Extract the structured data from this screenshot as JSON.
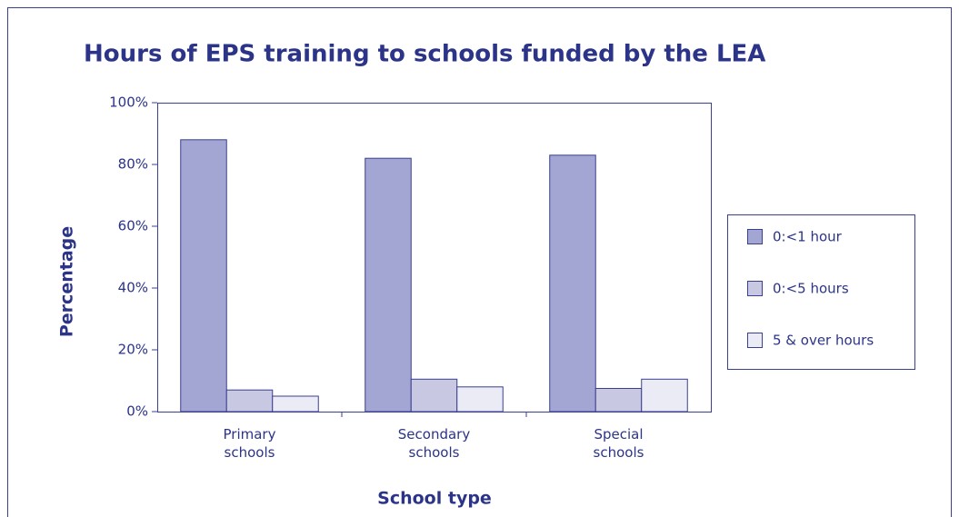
{
  "chart_data": {
    "type": "bar",
    "title": "Hours of EPS training to schools funded by the LEA",
    "x_label": "School type",
    "y_label": "Percentage",
    "categories": [
      "Primary schools",
      "Secondary schools",
      "Special schools"
    ],
    "series": [
      {
        "name": "0:<1 hour",
        "color": "#a3a5d3",
        "values": [
          88,
          82,
          83
        ]
      },
      {
        "name": "0:<5 hours",
        "color": "#c8c8e2",
        "values": [
          7,
          10.5,
          7.5
        ]
      },
      {
        "name": "5 & over hours",
        "color": "#ebebf5",
        "values": [
          5,
          8,
          10.5
        ]
      }
    ],
    "ylim": [
      0,
      100
    ],
    "yticks": [
      {
        "value": 0,
        "label": "0%"
      },
      {
        "value": 20,
        "label": "20%"
      },
      {
        "value": 40,
        "label": "40%"
      },
      {
        "value": 60,
        "label": "60%"
      },
      {
        "value": 80,
        "label": "80%"
      },
      {
        "value": 100,
        "label": "100%"
      }
    ],
    "legend": "right"
  }
}
